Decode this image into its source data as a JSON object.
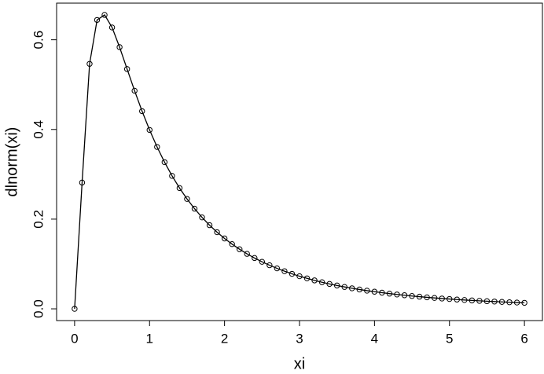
{
  "chart_data": {
    "type": "line",
    "x_label": "xi",
    "y_label": "dlnorm(xi)",
    "x": [
      0,
      0.1,
      0.2,
      0.3,
      0.4,
      0.5,
      0.6,
      0.7,
      0.8,
      0.9,
      1,
      1.1,
      1.2,
      1.3,
      1.4,
      1.5,
      1.6,
      1.7,
      1.8,
      1.9,
      2,
      2.1,
      2.2,
      2.3,
      2.4,
      2.5,
      2.6,
      2.7,
      2.8,
      2.9,
      3,
      3.1,
      3.2,
      3.3,
      3.4,
      3.5,
      3.6,
      3.7,
      3.8,
      3.9,
      4,
      4.1,
      4.2,
      4.3,
      4.4,
      4.5,
      4.6,
      4.7,
      4.8,
      4.9,
      5,
      5.1,
      5.2,
      5.3,
      5.4,
      5.5,
      5.6,
      5.7,
      5.8,
      5.9,
      6
    ],
    "series": [
      {
        "color": "#000000",
        "markers": true,
        "values": [
          0,
          0.2816,
          0.5463,
          0.6442,
          0.6555,
          0.6275,
          0.5836,
          0.5348,
          0.4864,
          0.4408,
          0.3989,
          0.361,
          0.327,
          0.2965,
          0.2693,
          0.245,
          0.2233,
          0.2039,
          0.1865,
          0.1709,
          0.1569,
          0.1443,
          0.1329,
          0.1226,
          0.1133,
          0.1049,
          0.0972,
          0.0902,
          0.0839,
          0.078,
          0.0727,
          0.0679,
          0.0634,
          0.0593,
          0.0555,
          0.052,
          0.0488,
          0.0458,
          0.0431,
          0.0405,
          0.0382,
          0.036,
          0.0339,
          0.032,
          0.0303,
          0.0286,
          0.0271,
          0.0256,
          0.0243,
          0.023,
          0.0219,
          0.0207,
          0.0197,
          0.0187,
          0.0178,
          0.017,
          0.0162,
          0.0154,
          0.0147,
          0.014,
          0.0134
        ]
      }
    ],
    "xlim": [
      -0.24,
      6.24
    ],
    "ylim": [
      -0.0262,
      0.6817
    ],
    "xticks": [
      0,
      1,
      2,
      3,
      4,
      5,
      6
    ],
    "yticks": [
      {
        "value": 0,
        "label": "0.0"
      },
      {
        "value": 0.2,
        "label": "0.2"
      },
      {
        "value": 0.4,
        "label": "0.4"
      },
      {
        "value": 0.6,
        "label": "0.6"
      }
    ],
    "grid": false
  }
}
